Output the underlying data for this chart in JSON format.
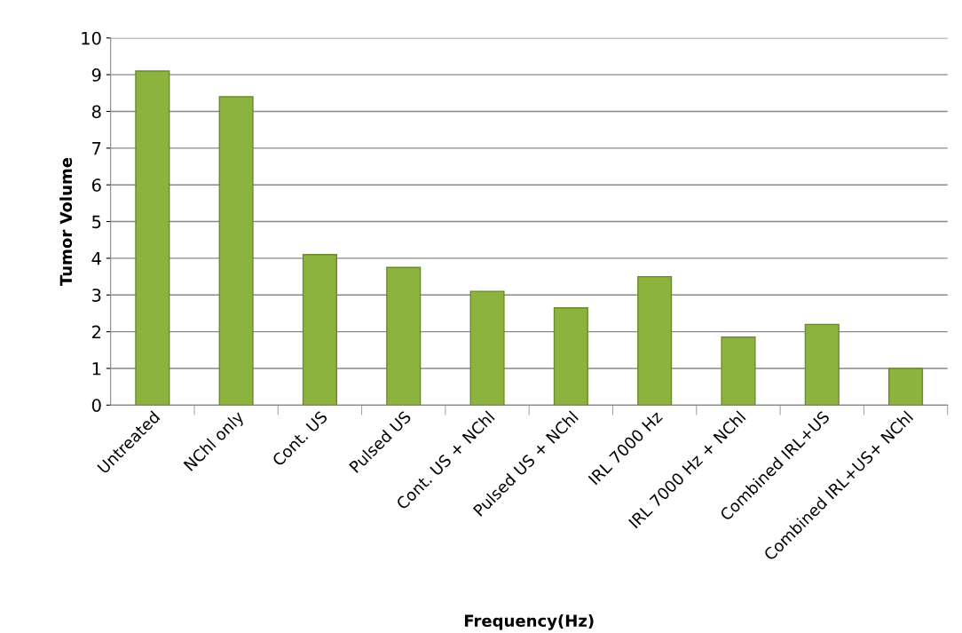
{
  "chart_data": {
    "type": "bar",
    "xlabel": "Frequency(Hz)",
    "ylabel": "Tumor Volume",
    "categories": [
      "Untreated",
      "NChl only",
      "Cont. US",
      "Pulsed US",
      "Cont. US + NChl",
      "Pulsed US + NChl",
      "IRL 7000 Hz",
      "IRL 7000 Hz + NChl",
      "Combined IRL+US",
      "Combined IRL+US+ NChl"
    ],
    "values": [
      9.1,
      8.4,
      4.1,
      3.75,
      3.1,
      2.65,
      3.5,
      1.85,
      2.2,
      1.0
    ],
    "color": "#8db33f",
    "ylim": [
      0,
      10
    ],
    "yticks": [
      0,
      1,
      2,
      3,
      4,
      5,
      6,
      7,
      8,
      9,
      10
    ],
    "grid": "y"
  }
}
